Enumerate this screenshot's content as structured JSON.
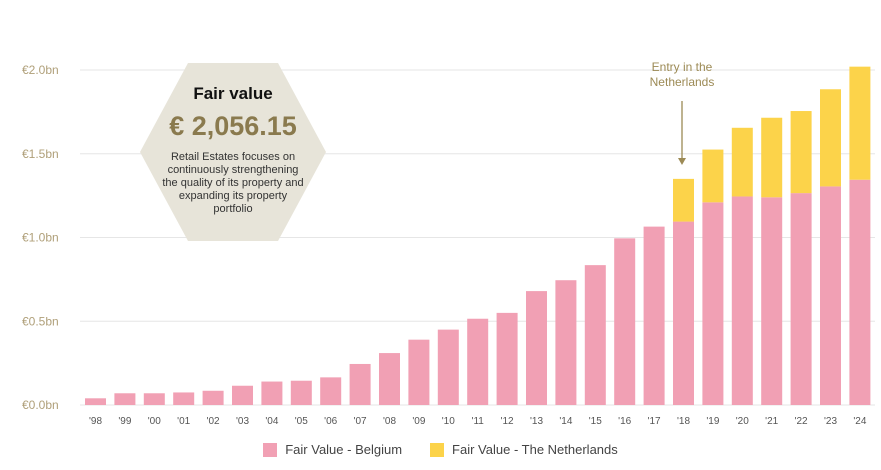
{
  "colors": {
    "belgium": "#f1a0b4",
    "netherlands": "#fcd34a",
    "grid": "#e6e6e6",
    "hexagon": "#e7e4d9",
    "annotation": "#9c8a55"
  },
  "info_box": {
    "title": "Fair value",
    "value": "€ 2,056.15",
    "description_lines": [
      "Retail Estates focuses on",
      "continuously strengthening",
      "the quality of its property and",
      "expanding its property",
      "portfolio"
    ]
  },
  "annotation": {
    "lines": [
      "Entry in the",
      "Netherlands"
    ],
    "target_category": "'18"
  },
  "chart_data": {
    "type": "bar",
    "stacked": true,
    "categories": [
      "'98",
      "'99",
      "'00",
      "'01",
      "'02",
      "'03",
      "'04",
      "'05",
      "'06",
      "'07",
      "'08",
      "'09",
      "'10",
      "'11",
      "'12",
      "'13",
      "'14",
      "'15",
      "'16",
      "'17",
      "'18",
      "'19",
      "'20",
      "'21",
      "'22",
      "'23",
      "'24"
    ],
    "series": [
      {
        "name": "Fair Value - Belgium",
        "values": [
          0.04,
          0.07,
          0.07,
          0.075,
          0.085,
          0.115,
          0.14,
          0.145,
          0.165,
          0.245,
          0.31,
          0.39,
          0.45,
          0.515,
          0.55,
          0.68,
          0.745,
          0.835,
          0.995,
          1.065,
          1.095,
          1.21,
          1.245,
          1.24,
          1.265,
          1.305,
          1.345
        ]
      },
      {
        "name": "Fair Value - The Netherlands",
        "values": [
          0,
          0,
          0,
          0,
          0,
          0,
          0,
          0,
          0,
          0,
          0,
          0,
          0,
          0,
          0,
          0,
          0,
          0,
          0,
          0,
          0.255,
          0.315,
          0.41,
          0.475,
          0.49,
          0.58,
          0.675
        ]
      }
    ],
    "y_ticks": [
      {
        "value": 0.0,
        "label": "€0.0bn"
      },
      {
        "value": 0.5,
        "label": "€0.5bn"
      },
      {
        "value": 1.0,
        "label": "€1.0bn"
      },
      {
        "value": 1.5,
        "label": "€1.5bn"
      },
      {
        "value": 2.0,
        "label": "€2.0bn"
      }
    ],
    "ylim": [
      0,
      2.0
    ],
    "grid": true,
    "legend_position": "bottom"
  }
}
